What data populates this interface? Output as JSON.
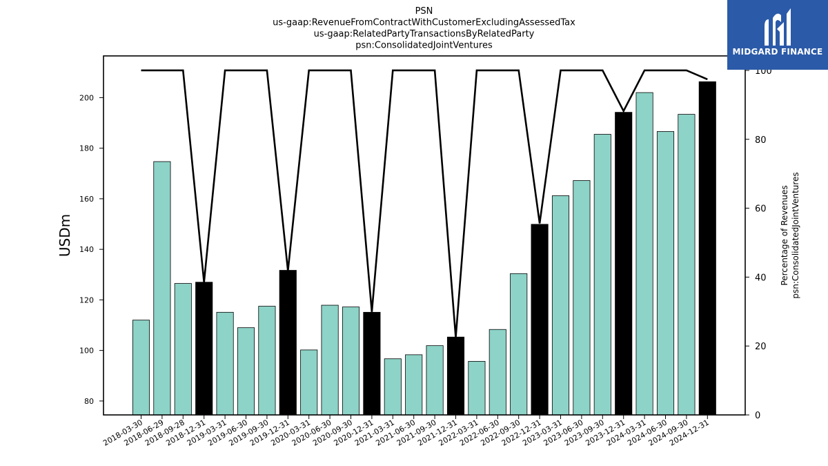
{
  "logo": {
    "text": "MIDGARD FINANCE",
    "icon": "midgard-logo-icon",
    "background": "#2b5aa8"
  },
  "chart_data": {
    "type": "bar",
    "title_lines": [
      "PSN",
      "us-gaap:RevenueFromContractWithCustomerExcludingAssessedTax",
      "us-gaap:RelatedPartyTransactionsByRelatedParty",
      "psn:ConsolidatedJointVentures"
    ],
    "ylabel": "USDm",
    "ylabel_right": [
      "Percentage of Revenues",
      "psn:ConsolidatedJointVentures"
    ],
    "ylim": [
      74.5,
      216.5
    ],
    "ylim_right": [
      0,
      104.2
    ],
    "yticks": [
      80,
      100,
      120,
      140,
      160,
      180,
      200
    ],
    "yticks_right": [
      0,
      20,
      40,
      60,
      80,
      100
    ],
    "colors": {
      "quarter_bar": "#8dd3c7",
      "year_end_bar": "#000000",
      "line": "#000000"
    },
    "categories": [
      "2018-03-30",
      "2018-06-29",
      "2018-09-28",
      "2018-12-31",
      "2019-03-31",
      "2019-06-30",
      "2019-09-30",
      "2019-12-31",
      "2020-03-31",
      "2020-06-30",
      "2020-09-30",
      "2020-12-31",
      "2021-03-31",
      "2021-06-30",
      "2021-09-30",
      "2021-12-31",
      "2022-03-31",
      "2022-06-30",
      "2022-09-30",
      "2022-12-31",
      "2023-03-31",
      "2023-06-30",
      "2023-09-30",
      "2023-12-31",
      "2024-03-31",
      "2024-06-30",
      "2024-09-30",
      "2024-12-31"
    ],
    "series": [
      {
        "type": "bar",
        "values": [
          112.0,
          174.7,
          126.5,
          127.0,
          115.1,
          109.0,
          117.5,
          131.7,
          100.2,
          117.9,
          117.2,
          115.1,
          96.7,
          98.3,
          101.9,
          105.3,
          95.7,
          108.3,
          130.4,
          149.9,
          161.2,
          167.2,
          185.5,
          194.2,
          202.0,
          186.6,
          193.4,
          206.3
        ],
        "year_end": [
          false,
          false,
          false,
          true,
          false,
          false,
          false,
          true,
          false,
          false,
          false,
          true,
          false,
          false,
          false,
          true,
          false,
          false,
          false,
          true,
          false,
          false,
          false,
          true,
          false,
          false,
          false,
          true
        ]
      },
      {
        "type": "line",
        "axis": "right",
        "values": [
          100,
          100,
          100,
          38.5,
          100,
          100,
          100,
          41.8,
          100,
          100,
          100,
          29.9,
          100,
          100,
          100,
          22.5,
          100,
          100,
          100,
          55.6,
          100,
          100,
          100,
          88.2,
          100,
          100,
          100,
          97.4
        ]
      }
    ]
  }
}
